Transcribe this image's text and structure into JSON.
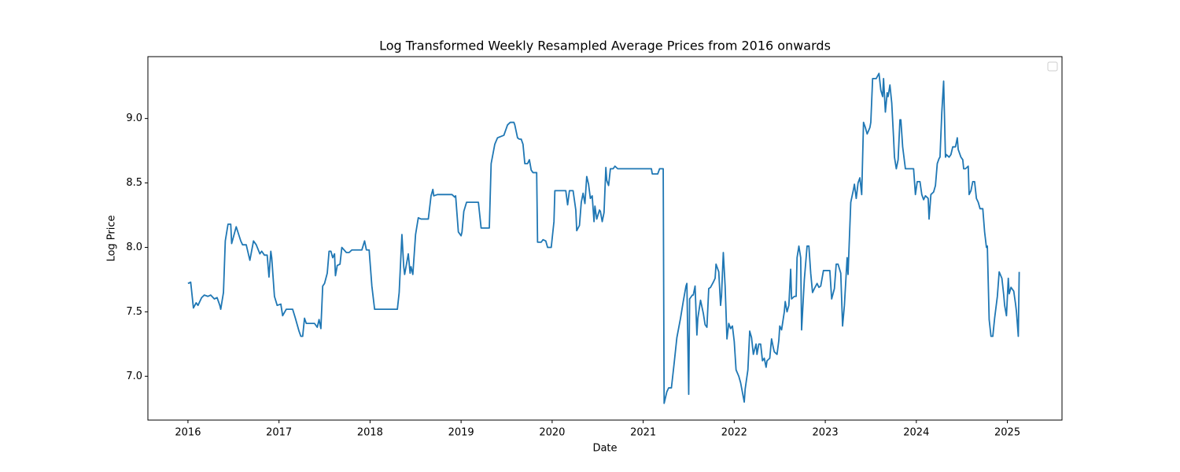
{
  "chart_data": {
    "type": "line",
    "title": "Log Transformed Weekly Resampled Average Prices from 2016 onwards",
    "x_label": "Date",
    "y_label": "Log Price",
    "color": "#1f77b4",
    "x": [
      2016.0,
      2016.03,
      2016.06,
      2016.09,
      2016.11,
      2016.15,
      2016.18,
      2016.22,
      2016.25,
      2016.29,
      2016.32,
      2016.35,
      2016.36,
      2016.39,
      2016.41,
      2016.44,
      2016.47,
      2016.48,
      2016.53,
      2016.58,
      2016.6,
      2016.64,
      2016.68,
      2016.72,
      2016.75,
      2016.79,
      2016.81,
      2016.84,
      2016.87,
      2016.89,
      2016.91,
      2016.92,
      2016.95,
      2016.98,
      2017.02,
      2017.04,
      2017.08,
      2017.15,
      2017.18,
      2017.22,
      2017.24,
      2017.26,
      2017.28,
      2017.3,
      2017.39,
      2017.42,
      2017.44,
      2017.46,
      2017.48,
      2017.5,
      2017.53,
      2017.55,
      2017.57,
      2017.59,
      2017.61,
      2017.62,
      2017.64,
      2017.67,
      2017.69,
      2017.74,
      2017.77,
      2017.8,
      2017.91,
      2017.94,
      2017.96,
      2017.99,
      2018.02,
      2018.05,
      2018.3,
      2018.32,
      2018.35,
      2018.37,
      2018.38,
      2018.42,
      2018.44,
      2018.45,
      2018.47,
      2018.5,
      2018.53,
      2018.56,
      2018.64,
      2018.67,
      2018.69,
      2018.7,
      2018.74,
      2018.9,
      2018.93,
      2018.94,
      2018.97,
      2019.0,
      2019.01,
      2019.03,
      2019.06,
      2019.19,
      2019.22,
      2019.31,
      2019.33,
      2019.37,
      2019.4,
      2019.47,
      2019.51,
      2019.54,
      2019.58,
      2019.59,
      2019.62,
      2019.64,
      2019.66,
      2019.68,
      2019.7,
      2019.73,
      2019.75,
      2019.77,
      2019.79,
      2019.83,
      2019.84,
      2019.88,
      2019.9,
      2019.93,
      2019.95,
      2019.99,
      2020.02,
      2020.03,
      2020.15,
      2020.17,
      2020.19,
      2020.23,
      2020.26,
      2020.27,
      2020.3,
      2020.32,
      2020.34,
      2020.36,
      2020.38,
      2020.4,
      2020.42,
      2020.44,
      2020.46,
      2020.47,
      2020.49,
      2020.52,
      2020.53,
      2020.55,
      2020.57,
      2020.59,
      2020.6,
      2020.62,
      2020.64,
      2020.67,
      2020.69,
      2020.72,
      2021.09,
      2021.1,
      2021.16,
      2021.18,
      2021.22,
      2021.23,
      2021.26,
      2021.28,
      2021.31,
      2021.34,
      2021.37,
      2021.41,
      2021.44,
      2021.47,
      2021.48,
      2021.5,
      2021.51,
      2021.54,
      2021.55,
      2021.57,
      2021.59,
      2021.6,
      2021.63,
      2021.66,
      2021.68,
      2021.7,
      2021.72,
      2021.74,
      2021.77,
      2021.79,
      2021.8,
      2021.83,
      2021.85,
      2021.86,
      2021.88,
      2021.9,
      2021.92,
      2021.94,
      2021.96,
      2021.98,
      2022.0,
      2022.02,
      2022.05,
      2022.07,
      2022.11,
      2022.12,
      2022.15,
      2022.17,
      2022.19,
      2022.21,
      2022.24,
      2022.25,
      2022.27,
      2022.29,
      2022.31,
      2022.33,
      2022.35,
      2022.36,
      2022.39,
      2022.41,
      2022.43,
      2022.44,
      2022.47,
      2022.49,
      2022.5,
      2022.52,
      2022.55,
      2022.56,
      2022.58,
      2022.6,
      2022.62,
      2022.63,
      2022.66,
      2022.68,
      2022.69,
      2022.71,
      2022.73,
      2022.74,
      2022.77,
      2022.8,
      2022.82,
      2022.84,
      2022.86,
      2022.88,
      2022.91,
      2022.93,
      2022.95,
      2022.98,
      2023.0,
      2023.05,
      2023.07,
      2023.1,
      2023.12,
      2023.14,
      2023.17,
      2023.19,
      2023.21,
      2023.24,
      2023.25,
      2023.28,
      2023.31,
      2023.32,
      2023.34,
      2023.36,
      2023.38,
      2023.4,
      2023.42,
      2023.44,
      2023.46,
      2023.49,
      2023.5,
      2023.52,
      2023.56,
      2023.59,
      2023.61,
      2023.63,
      2023.64,
      2023.66,
      2023.68,
      2023.69,
      2023.71,
      2023.73,
      2023.75,
      2023.76,
      2023.78,
      2023.8,
      2023.82,
      2023.83,
      2023.85,
      2023.88,
      2023.97,
      2023.99,
      2024.01,
      2024.04,
      2024.06,
      2024.08,
      2024.1,
      2024.13,
      2024.14,
      2024.16,
      2024.19,
      2024.21,
      2024.23,
      2024.25,
      2024.26,
      2024.28,
      2024.3,
      2024.32,
      2024.33,
      2024.36,
      2024.38,
      2024.4,
      2024.43,
      2024.45,
      2024.46,
      2024.49,
      2024.51,
      2024.52,
      2024.54,
      2024.57,
      2024.58,
      2024.6,
      2024.62,
      2024.64,
      2024.66,
      2024.68,
      2024.7,
      2024.73,
      2024.75,
      2024.77,
      2024.78,
      2024.8,
      2024.82,
      2024.84,
      2024.86,
      2024.89,
      2024.91,
      2024.94,
      2024.96,
      2024.97,
      2024.99,
      2025.01,
      2025.02,
      2025.04,
      2025.07,
      2025.09,
      2025.1,
      2025.12,
      2025.13
    ],
    "values": [
      7.72,
      7.73,
      7.53,
      7.57,
      7.55,
      7.61,
      7.63,
      7.62,
      7.63,
      7.6,
      7.61,
      7.55,
      7.52,
      7.65,
      8.05,
      8.18,
      8.18,
      8.03,
      8.16,
      8.05,
      8.02,
      8.02,
      7.9,
      8.05,
      8.02,
      7.95,
      7.97,
      7.94,
      7.94,
      7.77,
      7.97,
      7.92,
      7.62,
      7.55,
      7.56,
      7.47,
      7.52,
      7.52,
      7.45,
      7.35,
      7.31,
      7.31,
      7.45,
      7.41,
      7.41,
      7.38,
      7.44,
      7.37,
      7.7,
      7.72,
      7.8,
      7.97,
      7.97,
      7.92,
      7.95,
      7.78,
      7.86,
      7.87,
      8.0,
      7.96,
      7.96,
      7.98,
      7.98,
      8.05,
      7.98,
      7.98,
      7.7,
      7.52,
      7.52,
      7.65,
      8.1,
      7.85,
      7.79,
      7.95,
      7.8,
      7.85,
      7.79,
      8.1,
      8.23,
      8.22,
      8.22,
      8.4,
      8.45,
      8.4,
      8.41,
      8.41,
      8.39,
      8.4,
      8.12,
      8.09,
      8.12,
      8.28,
      8.35,
      8.35,
      8.15,
      8.15,
      8.65,
      8.8,
      8.85,
      8.87,
      8.95,
      8.97,
      8.97,
      8.95,
      8.85,
      8.84,
      8.84,
      8.8,
      8.65,
      8.65,
      8.68,
      8.6,
      8.58,
      8.58,
      8.04,
      8.04,
      8.06,
      8.05,
      8.0,
      8.0,
      8.2,
      8.44,
      8.44,
      8.33,
      8.44,
      8.44,
      8.29,
      8.13,
      8.17,
      8.35,
      8.42,
      8.34,
      8.55,
      8.49,
      8.38,
      8.4,
      8.2,
      8.32,
      8.22,
      8.29,
      8.28,
      8.2,
      8.27,
      8.62,
      8.52,
      8.48,
      8.61,
      8.61,
      8.63,
      8.61,
      8.61,
      8.57,
      8.57,
      8.61,
      8.61,
      6.79,
      6.88,
      6.91,
      6.91,
      7.1,
      7.3,
      7.45,
      7.58,
      7.7,
      7.72,
      6.86,
      7.6,
      7.63,
      7.63,
      7.7,
      7.32,
      7.45,
      7.59,
      7.49,
      7.4,
      7.38,
      7.68,
      7.69,
      7.73,
      7.76,
      7.87,
      7.81,
      7.55,
      7.62,
      7.96,
      7.7,
      7.29,
      7.41,
      7.37,
      7.39,
      7.27,
      7.05,
      7.0,
      6.95,
      6.8,
      6.9,
      7.05,
      7.35,
      7.3,
      7.17,
      7.25,
      7.17,
      7.25,
      7.25,
      7.12,
      7.14,
      7.07,
      7.12,
      7.14,
      7.29,
      7.22,
      7.19,
      7.17,
      7.28,
      7.39,
      7.36,
      7.5,
      7.58,
      7.5,
      7.55,
      7.83,
      7.6,
      7.62,
      7.62,
      7.92,
      8.01,
      7.92,
      7.36,
      7.75,
      8.01,
      8.01,
      7.8,
      7.65,
      7.68,
      7.72,
      7.69,
      7.7,
      7.82,
      7.82,
      7.82,
      7.6,
      7.68,
      7.87,
      7.87,
      7.8,
      7.39,
      7.55,
      7.92,
      7.79,
      8.35,
      8.45,
      8.49,
      8.38,
      8.5,
      8.54,
      8.41,
      8.97,
      8.93,
      8.88,
      8.93,
      8.97,
      9.31,
      9.31,
      9.35,
      9.22,
      9.17,
      9.31,
      9.05,
      9.2,
      9.17,
      9.26,
      9.12,
      8.85,
      8.7,
      8.61,
      8.68,
      8.99,
      8.99,
      8.78,
      8.61,
      8.61,
      8.41,
      8.51,
      8.51,
      8.41,
      8.37,
      8.4,
      8.38,
      8.22,
      8.41,
      8.43,
      8.48,
      8.65,
      8.69,
      8.7,
      9.05,
      9.29,
      8.7,
      8.72,
      8.7,
      8.72,
      8.78,
      8.78,
      8.85,
      8.76,
      8.7,
      8.68,
      8.61,
      8.61,
      8.63,
      8.41,
      8.44,
      8.51,
      8.51,
      8.38,
      8.35,
      8.3,
      8.3,
      8.12,
      8.0,
      8.01,
      7.44,
      7.31,
      7.31,
      7.45,
      7.62,
      7.81,
      7.76,
      7.63,
      7.55,
      7.47,
      7.76,
      7.64,
      7.69,
      7.66,
      7.56,
      7.5,
      7.31,
      7.81
    ],
    "xlim": [
      2015.56,
      2025.6
    ],
    "ylim": [
      6.66,
      9.48
    ],
    "xticks": [
      2016,
      2017,
      2018,
      2019,
      2020,
      2021,
      2022,
      2023,
      2024,
      2025
    ],
    "yticks": [
      {
        "value": 7.0,
        "label": "7.0"
      },
      {
        "value": 7.5,
        "label": "7.5"
      },
      {
        "value": 8.0,
        "label": "8.0"
      },
      {
        "value": 8.5,
        "label": "8.5"
      },
      {
        "value": 9.0,
        "label": "9.0"
      }
    ],
    "grid": false
  }
}
